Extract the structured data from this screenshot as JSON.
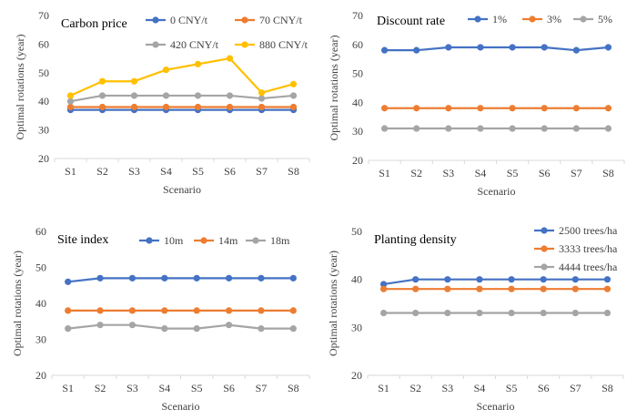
{
  "figure": {
    "y_axis_label": "Optimal rotations (year)",
    "x_axis_label": "Scenario"
  },
  "chart_data": [
    {
      "type": "line",
      "title": "Carbon price",
      "xlabel": "Scenario",
      "ylabel": "Optimal rotations (year)",
      "categories": [
        "S1",
        "S2",
        "S3",
        "S4",
        "S5",
        "S6",
        "S7",
        "S8"
      ],
      "ylim": [
        20,
        70
      ],
      "yticks": [
        20,
        30,
        40,
        50,
        60,
        70
      ],
      "legend_position": "top-right",
      "series": [
        {
          "name": "0 CNY/t",
          "color": "#4472C4",
          "values": [
            37,
            37,
            37,
            37,
            37,
            37,
            37,
            37
          ]
        },
        {
          "name": "70 CNY/t",
          "color": "#ED7D31",
          "values": [
            38,
            38,
            38,
            38,
            38,
            38,
            38,
            38
          ]
        },
        {
          "name": "420 CNY/t",
          "color": "#A5A5A5",
          "values": [
            40,
            42,
            42,
            42,
            42,
            42,
            41,
            42
          ]
        },
        {
          "name": "880 CNY/t",
          "color": "#FFC000",
          "values": [
            42,
            47,
            47,
            51,
            53,
            55,
            43,
            46
          ]
        }
      ]
    },
    {
      "type": "line",
      "title": "Discount rate",
      "xlabel": "Scenario",
      "ylabel": "Optimal rotations (year)",
      "categories": [
        "S1",
        "S2",
        "S3",
        "S4",
        "S5",
        "S6",
        "S7",
        "S8"
      ],
      "ylim": [
        20,
        70
      ],
      "yticks": [
        20,
        30,
        40,
        50,
        60,
        70
      ],
      "legend_position": "top-right",
      "series": [
        {
          "name": "1%",
          "color": "#4472C4",
          "values": [
            58,
            58,
            59,
            59,
            59,
            59,
            58,
            59
          ]
        },
        {
          "name": "3%",
          "color": "#ED7D31",
          "values": [
            38,
            38,
            38,
            38,
            38,
            38,
            38,
            38
          ]
        },
        {
          "name": "5%",
          "color": "#A5A5A5",
          "values": [
            31,
            31,
            31,
            31,
            31,
            31,
            31,
            31
          ]
        }
      ]
    },
    {
      "type": "line",
      "title": "Site index",
      "xlabel": "Scenario",
      "ylabel": "Optimal rotations (year)",
      "categories": [
        "S1",
        "S2",
        "S3",
        "S4",
        "S5",
        "S6",
        "S7",
        "S8"
      ],
      "ylim": [
        20,
        60
      ],
      "yticks": [
        20,
        30,
        40,
        50,
        60
      ],
      "legend_position": "top-right",
      "series": [
        {
          "name": "10m",
          "color": "#4472C4",
          "values": [
            46,
            47,
            47,
            47,
            47,
            47,
            47,
            47
          ]
        },
        {
          "name": "14m",
          "color": "#ED7D31",
          "values": [
            38,
            38,
            38,
            38,
            38,
            38,
            38,
            38
          ]
        },
        {
          "name": "18m",
          "color": "#A5A5A5",
          "values": [
            33,
            34,
            34,
            33,
            33,
            34,
            33,
            33
          ]
        }
      ]
    },
    {
      "type": "line",
      "title": "Planting density",
      "xlabel": "Scenario",
      "ylabel": "Optimal rotations (year)",
      "categories": [
        "S1",
        "S2",
        "S3",
        "S4",
        "S5",
        "S6",
        "S7",
        "S8"
      ],
      "ylim": [
        20,
        50
      ],
      "yticks": [
        20,
        30,
        40,
        50
      ],
      "legend_position": "top-right",
      "series": [
        {
          "name": "2500 trees/ha",
          "color": "#4472C4",
          "values": [
            39,
            40,
            40,
            40,
            40,
            40,
            40,
            40
          ]
        },
        {
          "name": "3333 trees/ha",
          "color": "#ED7D31",
          "values": [
            38,
            38,
            38,
            38,
            38,
            38,
            38,
            38
          ]
        },
        {
          "name": "4444 trees/ha",
          "color": "#A5A5A5",
          "values": [
            33,
            33,
            33,
            33,
            33,
            33,
            33,
            33
          ]
        }
      ]
    }
  ]
}
